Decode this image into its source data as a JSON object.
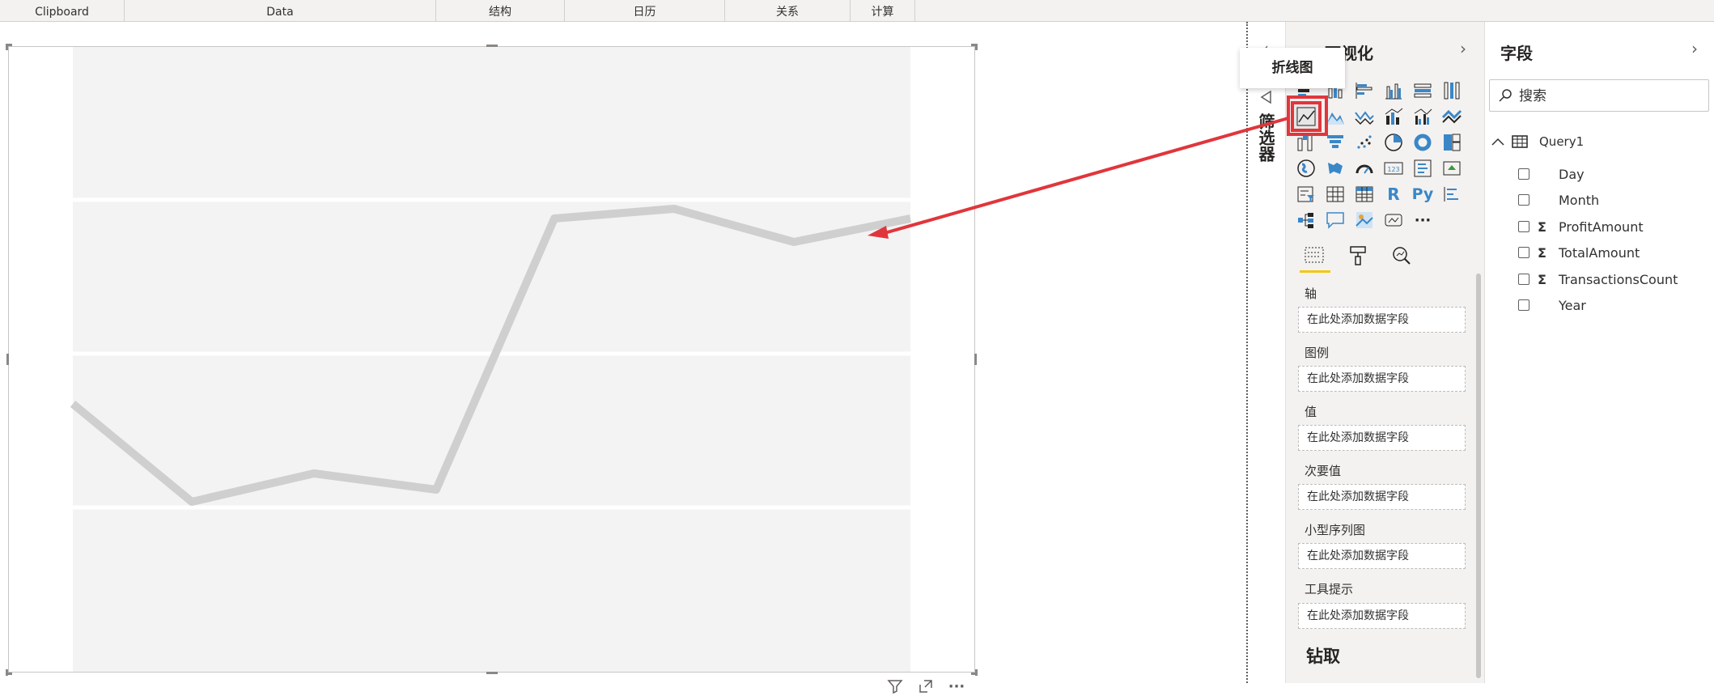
{
  "ribbon": {
    "groups": [
      "Clipboard",
      "Data",
      "结构",
      "日历",
      "关系",
      "计算"
    ]
  },
  "visual": {
    "header_icons": [
      "filter-icon",
      "focus-mode-icon",
      "more-options-icon"
    ],
    "more_label": "···"
  },
  "filters_pane": {
    "label": "筛选器"
  },
  "viz_pane": {
    "title": "可视化",
    "tooltip": "折线图",
    "selected_visual": "line-chart",
    "icons": [
      "stacked-bar-chart",
      "stacked-column-chart",
      "clustered-bar-chart",
      "clustered-column-chart",
      "100-stacked-bar-chart",
      "100-stacked-column-chart",
      "line-chart",
      "area-chart",
      "stacked-area-chart",
      "line-and-stacked-column-chart",
      "line-and-clustered-column-chart",
      "ribbon-chart",
      "waterfall-chart",
      "funnel-chart",
      "scatter-chart",
      "pie-chart",
      "donut-chart",
      "treemap",
      "map",
      "filled-map",
      "gauge",
      "card",
      "multi-row-card",
      "kpi",
      "slicer",
      "table",
      "matrix",
      "r-visual",
      "python-visual",
      "key-influencers",
      "decomposition-tree",
      "qna",
      "smart-narrative",
      "paginated-report",
      "more-visuals"
    ],
    "r_label": "R",
    "py_label": "Py",
    "more_label": "···",
    "tabs": [
      "fields-tab-icon",
      "format-tab-icon",
      "analytics-tab-icon"
    ],
    "wells": [
      {
        "label": "轴",
        "placeholder": "在此处添加数据字段"
      },
      {
        "label": "图例",
        "placeholder": "在此处添加数据字段"
      },
      {
        "label": "值",
        "placeholder": "在此处添加数据字段"
      },
      {
        "label": "次要值",
        "placeholder": "在此处添加数据字段"
      },
      {
        "label": "小型序列图",
        "placeholder": "在此处添加数据字段"
      },
      {
        "label": "工具提示",
        "placeholder": "在此处添加数据字段"
      }
    ],
    "drill_label": "钻取"
  },
  "fields_pane": {
    "title": "字段",
    "search_placeholder": "搜索",
    "table_name": "Query1",
    "fields": [
      {
        "name": "Day",
        "sigma": false
      },
      {
        "name": "Month",
        "sigma": false
      },
      {
        "name": "ProfitAmount",
        "sigma": true
      },
      {
        "name": "TotalAmount",
        "sigma": true
      },
      {
        "name": "TransactionsCount",
        "sigma": true
      },
      {
        "name": "Year",
        "sigma": false
      }
    ],
    "sigma_symbol": "Σ"
  },
  "colors": {
    "accent_red": "#e0363b",
    "tab_underline": "#f2c811",
    "placeholder_line": "#cfcfcf"
  }
}
